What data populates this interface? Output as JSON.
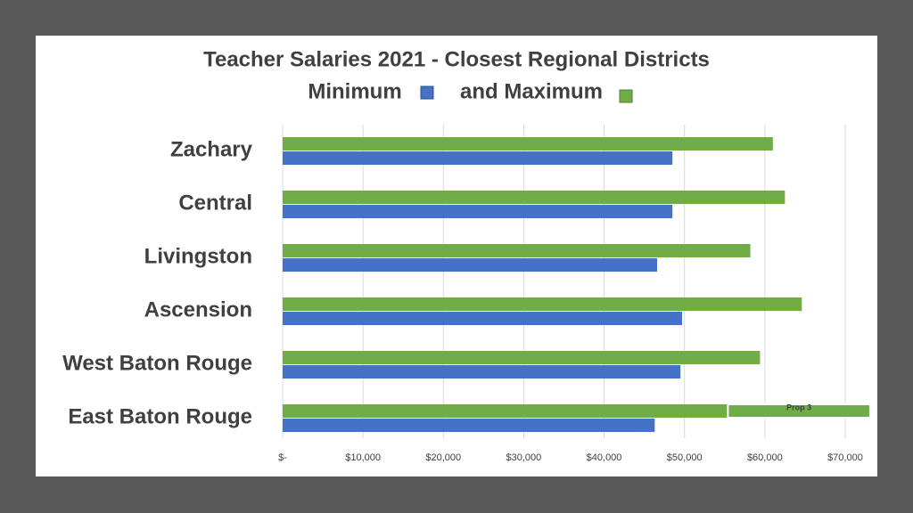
{
  "chart_data": {
    "type": "barh",
    "title": "Teacher Salaries 2021 - Closest Regional Districts",
    "categories": [
      "Zachary",
      "Central",
      "Livingston",
      "Ascension",
      "West Baton Rouge",
      "East Baton Rouge"
    ],
    "series": [
      {
        "name": "Minimum",
        "color": "#4472c4",
        "values": [
          48500,
          48500,
          46600,
          49700,
          49500,
          46300
        ]
      },
      {
        "name": "and Maximum",
        "color": "#70ad47",
        "values": [
          61000,
          62500,
          58200,
          64600,
          59400,
          55400
        ]
      }
    ],
    "extra_segment": {
      "label": "Prop 3",
      "value": 17700,
      "color": "#70ad47"
    },
    "xlim": [
      0,
      73000
    ],
    "xticks": [
      {
        "value": 0,
        "label": "$-"
      },
      {
        "value": 10000,
        "label": "$10,000"
      },
      {
        "value": 20000,
        "label": "$20,000"
      },
      {
        "value": 30000,
        "label": "$30,000"
      },
      {
        "value": 40000,
        "label": "$40,000"
      },
      {
        "value": 50000,
        "label": "$50,000"
      },
      {
        "value": 60000,
        "label": "$60,000"
      },
      {
        "value": 70000,
        "label": "$70,000"
      }
    ],
    "grid": true
  }
}
